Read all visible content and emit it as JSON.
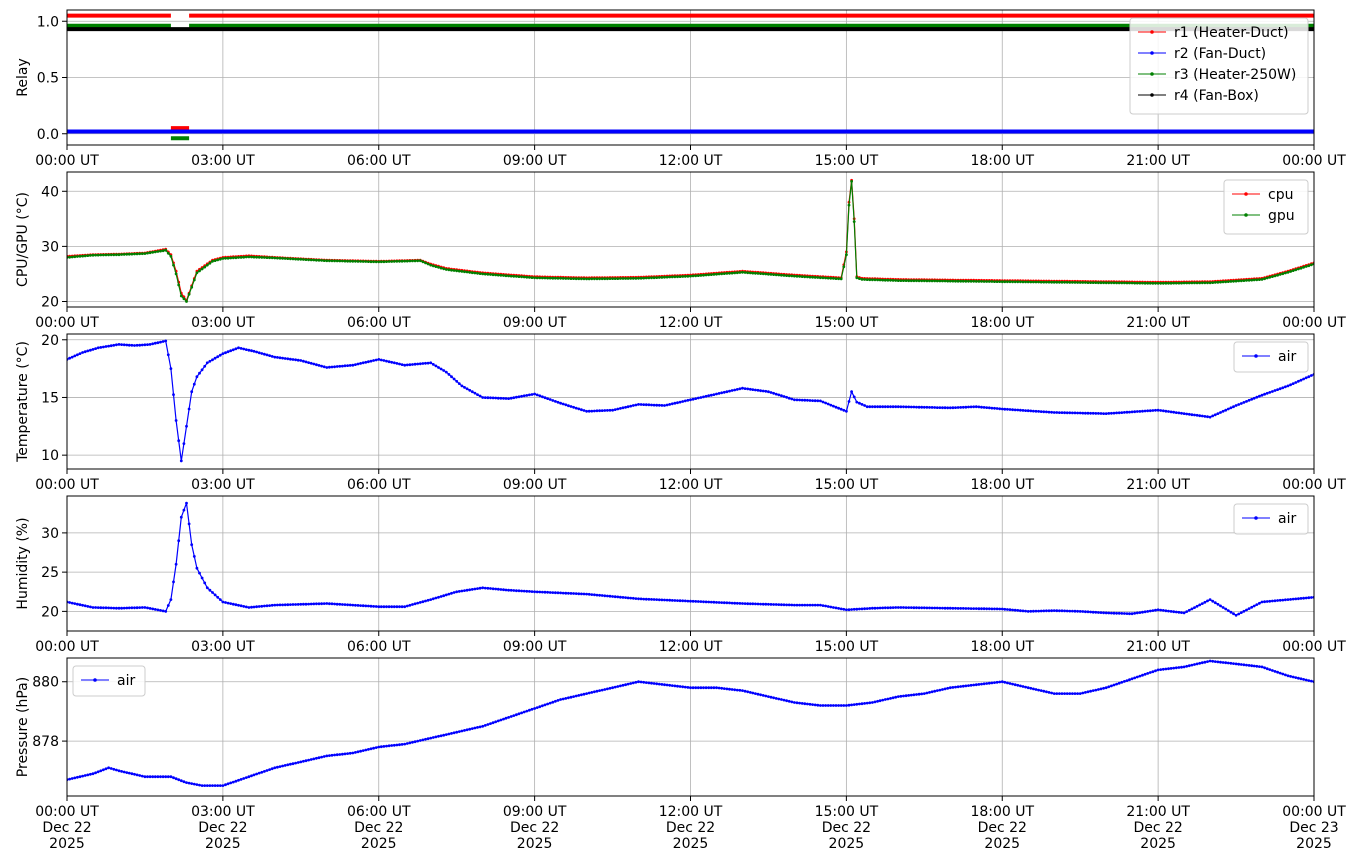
{
  "chart_data": [
    {
      "type": "line",
      "ylabel": "Relay",
      "xlim": [
        "00:00",
        "24:00"
      ],
      "ylim": [
        -0.1,
        1.1
      ],
      "yticks": [
        0.0,
        0.5,
        1.0
      ],
      "ytick_labels": [
        "0.0",
        "0.5",
        "1.0"
      ],
      "xtick_labels": [
        "00:00 UT",
        "03:00 UT",
        "06:00 UT",
        "09:00 UT",
        "12:00 UT",
        "15:00 UT",
        "18:00 UT",
        "21:00 UT",
        "00:00 UT"
      ],
      "legend": "upper-right",
      "series": [
        {
          "name": "r1 (Heater-Duct)",
          "color": "#ff0000",
          "segments": [
            {
              "x": [
                0,
                2.0
              ],
              "y": [
                1.05,
                1.05
              ]
            },
            {
              "x": [
                2.0,
                2.35
              ],
              "y": [
                0.05,
                0.05
              ]
            },
            {
              "x": [
                2.35,
                24
              ],
              "y": [
                1.05,
                1.05
              ]
            }
          ]
        },
        {
          "name": "r2 (Fan-Duct)",
          "color": "#0000ff",
          "segments": [
            {
              "x": [
                0,
                24
              ],
              "y": [
                0.02,
                0.02
              ]
            }
          ]
        },
        {
          "name": "r3 (Heater-250W)",
          "color": "#008000",
          "segments": [
            {
              "x": [
                0,
                2.0
              ],
              "y": [
                0.96,
                0.96
              ]
            },
            {
              "x": [
                2.0,
                2.35
              ],
              "y": [
                -0.04,
                -0.04
              ]
            },
            {
              "x": [
                2.35,
                24
              ],
              "y": [
                0.96,
                0.96
              ]
            }
          ]
        },
        {
          "name": "r4 (Fan-Box)",
          "color": "#000000",
          "segments": [
            {
              "x": [
                0,
                24
              ],
              "y": [
                0.93,
                0.93
              ]
            }
          ]
        }
      ]
    },
    {
      "type": "line",
      "ylabel": "CPU/GPU (°C)",
      "xlim": [
        "00:00",
        "24:00"
      ],
      "ylim": [
        19,
        43.5
      ],
      "yticks": [
        20,
        30,
        40
      ],
      "ytick_labels": [
        "20",
        "30",
        "40"
      ],
      "xtick_labels": [
        "00:00 UT",
        "03:00 UT",
        "06:00 UT",
        "09:00 UT",
        "12:00 UT",
        "15:00 UT",
        "18:00 UT",
        "21:00 UT",
        "00:00 UT"
      ],
      "legend": "upper-right",
      "series": [
        {
          "name": "cpu",
          "color": "#ff0000",
          "x": [
            0,
            0.5,
            1.0,
            1.5,
            1.9,
            2.0,
            2.1,
            2.2,
            2.3,
            2.5,
            2.8,
            3.0,
            3.5,
            4.0,
            5.0,
            6.0,
            6.8,
            7.0,
            7.3,
            8.0,
            9.0,
            10.0,
            11.0,
            12.0,
            13.0,
            14.0,
            14.9,
            15.0,
            15.05,
            15.1,
            15.15,
            15.2,
            15.3,
            16.0,
            17.0,
            18.0,
            19.0,
            20.0,
            21.0,
            22.0,
            23.0,
            23.5,
            24.0
          ],
          "y": [
            28.2,
            28.5,
            28.6,
            28.8,
            29.5,
            28.5,
            25.5,
            21.5,
            20.2,
            25.5,
            27.5,
            28.0,
            28.3,
            28.0,
            27.5,
            27.3,
            27.5,
            26.8,
            26.0,
            25.2,
            24.5,
            24.3,
            24.4,
            24.8,
            25.5,
            24.8,
            24.3,
            29.0,
            38.0,
            42.0,
            35.0,
            24.5,
            24.2,
            24.0,
            23.9,
            23.8,
            23.7,
            23.6,
            23.5,
            23.6,
            24.2,
            25.5,
            27.0
          ]
        },
        {
          "name": "gpu",
          "color": "#008000",
          "x": [
            0,
            0.5,
            1.0,
            1.5,
            1.9,
            2.0,
            2.1,
            2.2,
            2.3,
            2.5,
            2.8,
            3.0,
            3.5,
            4.0,
            5.0,
            6.0,
            6.8,
            7.0,
            7.3,
            8.0,
            9.0,
            10.0,
            11.0,
            12.0,
            13.0,
            14.0,
            14.9,
            15.0,
            15.05,
            15.1,
            15.15,
            15.2,
            15.3,
            16.0,
            17.0,
            18.0,
            19.0,
            20.0,
            21.0,
            22.0,
            23.0,
            23.5,
            24.0
          ],
          "y": [
            28.0,
            28.4,
            28.5,
            28.7,
            29.3,
            28.2,
            25.0,
            21.0,
            20.0,
            25.2,
            27.3,
            27.8,
            28.1,
            27.9,
            27.4,
            27.2,
            27.4,
            26.6,
            25.8,
            25.0,
            24.3,
            24.1,
            24.2,
            24.6,
            25.3,
            24.6,
            24.1,
            28.5,
            37.5,
            41.8,
            34.5,
            24.3,
            24.0,
            23.8,
            23.7,
            23.6,
            23.5,
            23.4,
            23.3,
            23.4,
            24.0,
            25.3,
            26.8
          ]
        }
      ]
    },
    {
      "type": "line",
      "ylabel": "Temperature (°C)",
      "xlim": [
        "00:00",
        "24:00"
      ],
      "ylim": [
        8.8,
        20.5
      ],
      "yticks": [
        10,
        15,
        20
      ],
      "ytick_labels": [
        "10",
        "15",
        "20"
      ],
      "xtick_labels": [
        "00:00 UT",
        "03:00 UT",
        "06:00 UT",
        "09:00 UT",
        "12:00 UT",
        "15:00 UT",
        "18:00 UT",
        "21:00 UT",
        "00:00 UT"
      ],
      "legend": "upper-right",
      "series": [
        {
          "name": "air",
          "color": "#0000ff",
          "x": [
            0,
            0.3,
            0.6,
            1.0,
            1.3,
            1.6,
            1.9,
            2.0,
            2.1,
            2.2,
            2.3,
            2.4,
            2.5,
            2.7,
            3.0,
            3.3,
            3.6,
            4.0,
            4.5,
            5.0,
            5.5,
            6.0,
            6.5,
            7.0,
            7.3,
            7.6,
            8.0,
            8.5,
            9.0,
            9.5,
            10.0,
            10.5,
            11.0,
            11.5,
            12.0,
            12.5,
            13.0,
            13.5,
            14.0,
            14.5,
            15.0,
            15.1,
            15.2,
            15.4,
            16.0,
            17.0,
            17.5,
            18.0,
            19.0,
            20.0,
            21.0,
            21.5,
            22.0,
            22.5,
            23.0,
            23.5,
            24.0
          ],
          "y": [
            18.3,
            18.9,
            19.3,
            19.6,
            19.5,
            19.6,
            19.9,
            17.5,
            13.0,
            9.5,
            12.5,
            15.5,
            16.8,
            18.0,
            18.8,
            19.3,
            19.0,
            18.5,
            18.2,
            17.6,
            17.8,
            18.3,
            17.8,
            18.0,
            17.2,
            16.0,
            15.0,
            14.9,
            15.3,
            14.5,
            13.8,
            13.9,
            14.4,
            14.3,
            14.8,
            15.3,
            15.8,
            15.5,
            14.8,
            14.7,
            13.8,
            15.5,
            14.6,
            14.2,
            14.2,
            14.1,
            14.2,
            14.0,
            13.7,
            13.6,
            13.9,
            13.6,
            13.3,
            14.3,
            15.2,
            16.0,
            17.0
          ]
        }
      ]
    },
    {
      "type": "line",
      "ylabel": "Humidity (%)",
      "xlim": [
        "00:00",
        "24:00"
      ],
      "ylim": [
        17.5,
        34.7
      ],
      "yticks": [
        20,
        25,
        30
      ],
      "ytick_labels": [
        "20",
        "25",
        "30"
      ],
      "xtick_labels": [
        "00:00 UT",
        "03:00 UT",
        "06:00 UT",
        "09:00 UT",
        "12:00 UT",
        "15:00 UT",
        "18:00 UT",
        "21:00 UT",
        "00:00 UT"
      ],
      "legend": "upper-right",
      "series": [
        {
          "name": "air",
          "color": "#0000ff",
          "x": [
            0,
            0.5,
            1.0,
            1.5,
            1.9,
            2.0,
            2.1,
            2.2,
            2.3,
            2.4,
            2.5,
            2.7,
            3.0,
            3.5,
            4.0,
            5.0,
            6.0,
            6.5,
            7.0,
            7.5,
            8.0,
            8.5,
            9.0,
            10.0,
            11.0,
            12.0,
            13.0,
            14.0,
            14.5,
            15.0,
            15.5,
            16.0,
            17.0,
            18.0,
            18.5,
            19.0,
            19.5,
            20.0,
            20.5,
            21.0,
            21.5,
            22.0,
            22.5,
            23.0,
            23.5,
            24.0
          ],
          "y": [
            21.2,
            20.5,
            20.4,
            20.5,
            20.0,
            21.5,
            26.0,
            32.0,
            33.8,
            28.5,
            25.5,
            23.0,
            21.2,
            20.5,
            20.8,
            21.0,
            20.6,
            20.6,
            21.5,
            22.5,
            23.0,
            22.7,
            22.5,
            22.2,
            21.6,
            21.3,
            21.0,
            20.8,
            20.8,
            20.2,
            20.4,
            20.5,
            20.4,
            20.3,
            20.0,
            20.1,
            20.0,
            19.8,
            19.7,
            20.2,
            19.8,
            21.5,
            19.5,
            21.2,
            21.5,
            21.8
          ]
        }
      ]
    },
    {
      "type": "line",
      "ylabel": "Pressure (hPa)",
      "xlim": [
        "00:00",
        "24:00"
      ],
      "ylim": [
        876.15,
        880.8
      ],
      "yticks": [
        878,
        880
      ],
      "ytick_labels": [
        "878",
        "880"
      ],
      "xtick_labels": [
        "00:00 UT\nDec 22\n2025",
        "03:00 UT\nDec 22\n2025",
        "06:00 UT\nDec 22\n2025",
        "09:00 UT\nDec 22\n2025",
        "12:00 UT\nDec 22\n2025",
        "15:00 UT\nDec 22\n2025",
        "18:00 UT\nDec 22\n2025",
        "21:00 UT\nDec 22\n2025",
        "00:00 UT\nDec 23\n2025"
      ],
      "legend": "upper-left",
      "series": [
        {
          "name": "air",
          "color": "#0000ff",
          "x": [
            0,
            0.5,
            0.8,
            1.0,
            1.5,
            2.0,
            2.3,
            2.6,
            3.0,
            3.5,
            4.0,
            4.5,
            5.0,
            5.5,
            6.0,
            6.5,
            7.0,
            7.5,
            8.0,
            8.5,
            9.0,
            9.5,
            10.0,
            10.5,
            11.0,
            11.5,
            12.0,
            12.5,
            13.0,
            13.5,
            14.0,
            14.5,
            15.0,
            15.5,
            16.0,
            16.5,
            17.0,
            17.5,
            18.0,
            18.5,
            19.0,
            19.5,
            20.0,
            20.5,
            21.0,
            21.5,
            22.0,
            22.5,
            23.0,
            23.5,
            24.0
          ],
          "y": [
            876.7,
            876.9,
            877.1,
            877.0,
            876.8,
            876.8,
            876.6,
            876.5,
            876.5,
            876.8,
            877.1,
            877.3,
            877.5,
            877.6,
            877.8,
            877.9,
            878.1,
            878.3,
            878.5,
            878.8,
            879.1,
            879.4,
            879.6,
            879.8,
            880.0,
            879.9,
            879.8,
            879.8,
            879.7,
            879.5,
            879.3,
            879.2,
            879.2,
            879.3,
            879.5,
            879.6,
            879.8,
            879.9,
            880.0,
            879.8,
            879.6,
            879.6,
            879.8,
            880.1,
            880.4,
            880.5,
            880.7,
            880.6,
            880.5,
            880.2,
            880.0
          ]
        }
      ]
    }
  ]
}
